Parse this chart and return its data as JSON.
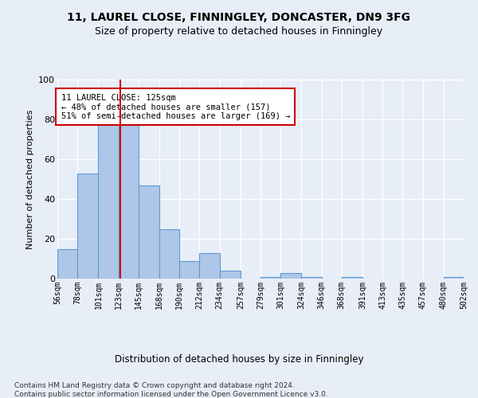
{
  "title1": "11, LAUREL CLOSE, FINNINGLEY, DONCASTER, DN9 3FG",
  "title2": "Size of property relative to detached houses in Finningley",
  "xlabel": "Distribution of detached houses by size in Finningley",
  "ylabel": "Number of detached properties",
  "bar_edges": [
    56,
    78,
    101,
    123,
    145,
    168,
    190,
    212,
    234,
    257,
    279,
    301,
    324,
    346,
    368,
    391,
    413,
    435,
    457,
    480,
    502
  ],
  "bar_heights": [
    15,
    53,
    82,
    85,
    47,
    25,
    9,
    13,
    4,
    0,
    1,
    3,
    1,
    0,
    1,
    0,
    0,
    0,
    0,
    1
  ],
  "bar_color": "#aec6e8",
  "bar_edge_color": "#5b9bd5",
  "property_size": 125,
  "vline_color": "#cc0000",
  "annotation_text": "11 LAUREL CLOSE: 125sqm\n← 48% of detached houses are smaller (157)\n51% of semi-detached houses are larger (169) →",
  "annotation_box_color": "#ffffff",
  "annotation_box_edge": "#cc0000",
  "ylim": [
    0,
    100
  ],
  "yticks": [
    0,
    20,
    40,
    60,
    80,
    100
  ],
  "footer": "Contains HM Land Registry data © Crown copyright and database right 2024.\nContains public sector information licensed under the Open Government Licence v3.0.",
  "bg_color": "#e8eef7",
  "plot_bg_color": "#e8eef7"
}
